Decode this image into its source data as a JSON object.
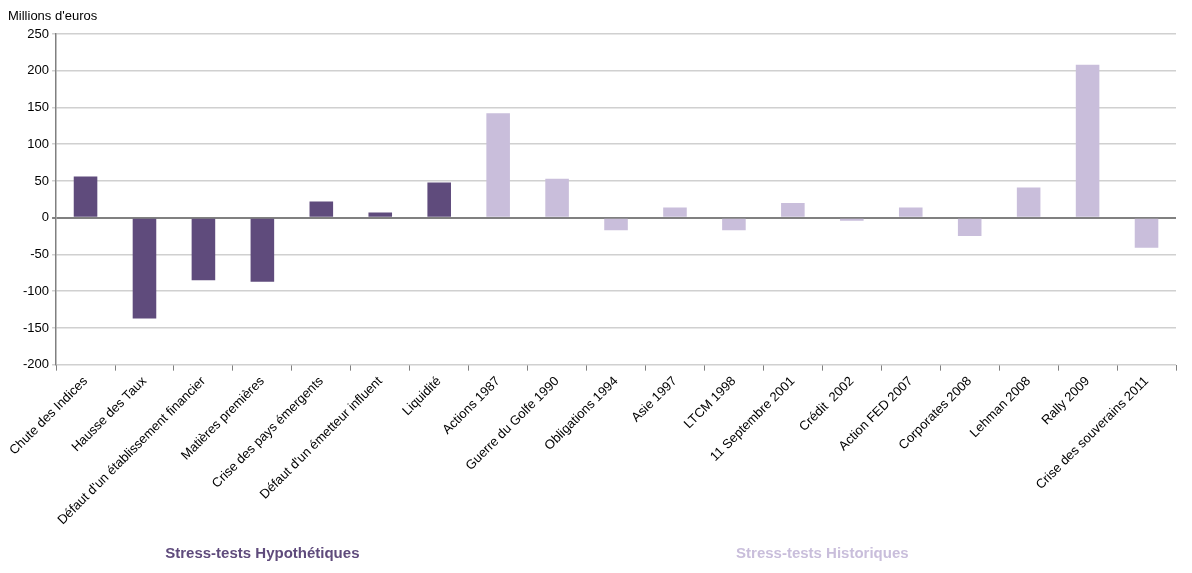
{
  "chart_data": {
    "type": "bar",
    "ylabel": "Millions d'euros",
    "categories": [
      "Chute des Indices",
      "Hausse des Taux",
      "Défaut d'un établissement financier",
      "Matières premières",
      "Crise des pays émergents",
      "Défaut d'un émetteur influent",
      "Liquidité",
      "Actions 1987",
      "Guerre du Golfe 1990",
      "Obligations 1994",
      "Asie 1997",
      "LTCM 1998",
      "11 Septembre 2001",
      "Crédit  2002",
      "Action FED 2007",
      "Corporates 2008",
      "Lehman 2008",
      "Rally 2009",
      "Crise des souverains 2011"
    ],
    "series": [
      {
        "name": "Stress-tests Hypothétiques",
        "color": "#5f4b7c",
        "values": [
          56,
          -137,
          -85,
          -87,
          22,
          7,
          48,
          null,
          null,
          null,
          null,
          null,
          null,
          null,
          null,
          null,
          null,
          null,
          null
        ]
      },
      {
        "name": "Stress-tests Historiques",
        "color": "#c9bedb",
        "values": [
          null,
          null,
          null,
          null,
          null,
          null,
          null,
          142,
          53,
          -17,
          14,
          -17,
          20,
          -4,
          14,
          -25,
          41,
          208,
          -41
        ]
      }
    ],
    "ylim": [
      -200,
      250
    ],
    "yticks": [
      -200,
      -150,
      -100,
      -50,
      0,
      50,
      100,
      150,
      200,
      250
    ],
    "grid": "y",
    "legend": "bottom"
  }
}
